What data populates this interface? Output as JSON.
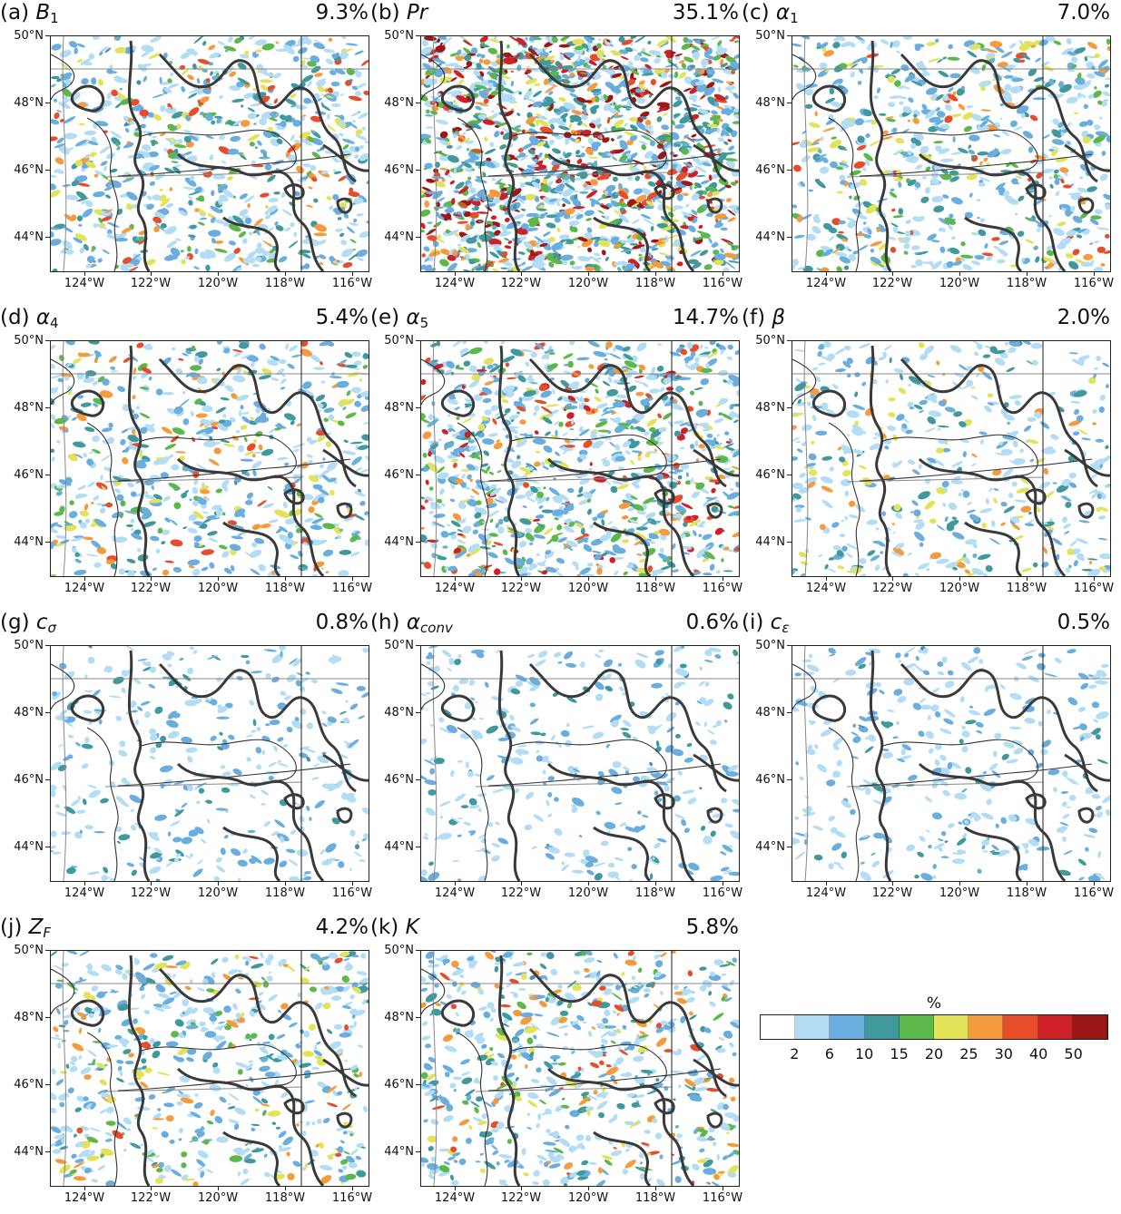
{
  "panels": [
    {
      "label": "(a)",
      "symbol": "B",
      "sub": "1",
      "italic_sub": false,
      "pct": "9.3%",
      "intensity": 0.37
    },
    {
      "label": "(b)",
      "symbol": "Pr",
      "sub": "",
      "italic_sub": false,
      "pct": "35.1%",
      "intensity": 0.95
    },
    {
      "label": "(c)",
      "symbol": "α",
      "sub": "1",
      "italic_sub": false,
      "pct": "7.0%",
      "intensity": 0.33
    },
    {
      "label": "(d)",
      "symbol": "α",
      "sub": "4",
      "italic_sub": false,
      "pct": "5.4%",
      "intensity": 0.28
    },
    {
      "label": "(e)",
      "symbol": "α",
      "sub": "5",
      "italic_sub": false,
      "pct": "14.7%",
      "intensity": 0.55
    },
    {
      "label": "(f)",
      "symbol": "β",
      "sub": "",
      "italic_sub": false,
      "pct": "2.0%",
      "intensity": 0.16
    },
    {
      "label": "(g)",
      "symbol": "c",
      "sub": "σ",
      "italic_sub": true,
      "pct": "0.8%",
      "intensity": 0.07
    },
    {
      "label": "(h)",
      "symbol": "α",
      "sub": "conv",
      "italic_sub": true,
      "pct": "0.6%",
      "intensity": 0.06
    },
    {
      "label": "(i)",
      "symbol": "c",
      "sub": "ε",
      "italic_sub": true,
      "pct": "0.5%",
      "intensity": 0.05
    },
    {
      "label": "(j)",
      "symbol": "Z",
      "sub": "F",
      "italic_sub": true,
      "pct": "4.2%",
      "intensity": 0.24
    },
    {
      "label": "(k)",
      "symbol": "K",
      "sub": "",
      "italic_sub": false,
      "pct": "5.8%",
      "intensity": 0.3
    }
  ],
  "axes": {
    "lat_labels": [
      "50°N",
      "48°N",
      "46°N",
      "44°N"
    ],
    "lon_labels": [
      "124°W",
      "122°W",
      "120°W",
      "118°W",
      "116°W"
    ]
  },
  "legend": {
    "title": "%",
    "tick_labels": [
      "2",
      "6",
      "10",
      "15",
      "20",
      "25",
      "30",
      "40",
      "50"
    ],
    "colors": [
      "#ffffff",
      "#b3ddf5",
      "#6aaee0",
      "#40999c",
      "#5cb84a",
      "#e3e35a",
      "#f59b3e",
      "#e64d2b",
      "#cc2128",
      "#9c1717"
    ]
  }
}
